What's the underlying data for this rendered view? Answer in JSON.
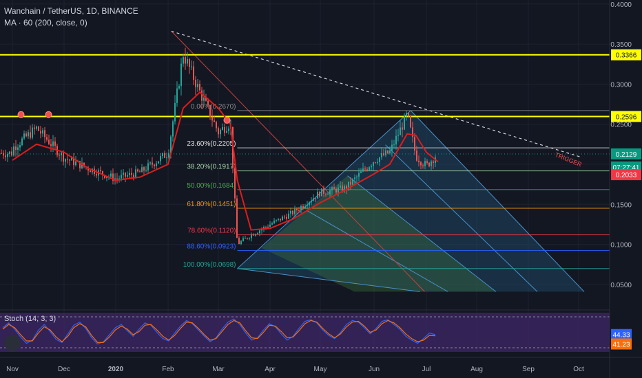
{
  "header": {
    "title": "Wanchain / TetherUS, 1D, BINANCE",
    "indicator": "MA · 60 (200, close, 0)"
  },
  "colors": {
    "background": "#131722",
    "axis_text": "#b2b5be",
    "grid": "#1e2230",
    "candle_up": "#26a69a",
    "candle_down": "#ef5350",
    "ma_line": "#e01c1c",
    "resistance": "#ffff00",
    "fib_zone_fill": "#1f4e6e",
    "stoch_bg": "#4a2a7a",
    "stoch_k": "#2962ff",
    "stoch_d": "#ff6d00",
    "price_tag_green": "#089981",
    "price_tag_red": "#f23645"
  },
  "price_axis": {
    "ticks": [
      "0.4000",
      "0.3500",
      "0.3000",
      "0.2500",
      "0.1500",
      "0.1000",
      "0.0500"
    ],
    "resistance_high": "0.3366",
    "resistance_mid": "0.2596",
    "last_price": "0.2129",
    "countdown": "07:27:41",
    "ma_value": "0.2033"
  },
  "time_axis": {
    "labels": [
      "Nov",
      "Dec",
      "2020",
      "Feb",
      "Mar",
      "Apr",
      "May",
      "Jun",
      "Jul",
      "Aug",
      "Sep",
      "Oct"
    ]
  },
  "fib_levels": [
    {
      "label": "0.00%(0.2670)",
      "value": 0.267,
      "color": "#8a8a8a"
    },
    {
      "label": "23.60%(0.2205)",
      "value": 0.2205,
      "color": "#e6e6e6"
    },
    {
      "label": "38.20%(0.1917)",
      "value": 0.1917,
      "color": "#a5d6a7"
    },
    {
      "label": "50.00%(0.1684)",
      "value": 0.1684,
      "color": "#4caf50"
    },
    {
      "label": "61.80%(0.1451)",
      "value": 0.1451,
      "color": "#ff9800"
    },
    {
      "label": "78.60%(0.1120)",
      "value": 0.112,
      "color": "#f23645"
    },
    {
      "label": "88.60%(0.0923)",
      "value": 0.0923,
      "color": "#2962ff"
    },
    {
      "label": "100.00%(0.0698)",
      "value": 0.0698,
      "color": "#26a69a"
    }
  ],
  "annotations": {
    "trigger": "TRIGGER"
  },
  "stoch": {
    "label": "Stoch (14, 3, 3)",
    "k_value": "44.33",
    "d_value": "41.23",
    "k_series": [
      62,
      74,
      58,
      38,
      22,
      30,
      55,
      70,
      52,
      32,
      24,
      46,
      68,
      76,
      60,
      36,
      20,
      26,
      44,
      62,
      70,
      54,
      40,
      58,
      74,
      68,
      50,
      34,
      28,
      48,
      66,
      80,
      72,
      56,
      40,
      26,
      36,
      58,
      76,
      84,
      70,
      48,
      30,
      36,
      56,
      72,
      64,
      46,
      30,
      40,
      60,
      78,
      82,
      74,
      56,
      42,
      34,
      50,
      70,
      80,
      76,
      62,
      46,
      60,
      78,
      82,
      70,
      58,
      40,
      30,
      22,
      34,
      48,
      44
    ],
    "d_series": [
      58,
      70,
      62,
      44,
      28,
      28,
      48,
      64,
      56,
      38,
      26,
      40,
      62,
      72,
      64,
      42,
      24,
      24,
      38,
      56,
      66,
      58,
      44,
      52,
      68,
      70,
      56,
      40,
      30,
      42,
      60,
      76,
      74,
      60,
      44,
      30,
      34,
      52,
      70,
      80,
      74,
      54,
      36,
      34,
      50,
      68,
      66,
      52,
      36,
      38,
      54,
      72,
      80,
      76,
      60,
      46,
      36,
      46,
      64,
      76,
      78,
      66,
      50,
      56,
      72,
      80,
      74,
      62,
      46,
      34,
      26,
      30,
      42,
      41
    ]
  },
  "chart_data": {
    "type": "line",
    "title": "Wanchain / TetherUS, 1D, BINANCE",
    "xlabel": "",
    "ylabel": "",
    "ylim": [
      0.025,
      0.405
    ],
    "x": [
      "Nov 1",
      "Nov 15",
      "Dec 1",
      "Dec 15",
      "Jan 1",
      "Jan 15",
      "Feb 1",
      "Feb 10",
      "Feb 20",
      "Mar 1",
      "Mar 8",
      "Mar 12",
      "Mar 20",
      "Apr 1",
      "Apr 15",
      "May 1",
      "May 15",
      "Jun 1",
      "Jun 10",
      "Jun 20",
      "Jun 25",
      "Jul 1",
      "Jul 8"
    ],
    "series": [
      {
        "name": "",
        "values": [
          0.22,
          0.245,
          0.208,
          0.195,
          0.182,
          0.19,
          0.214,
          0.338,
          0.29,
          0.24,
          0.252,
          0.1,
          0.112,
          0.125,
          0.14,
          0.165,
          0.17,
          0.205,
          0.215,
          0.262,
          0.21,
          0.198,
          0.214
        ]
      },
      {
        "name": "",
        "values": [
          0.205,
          0.225,
          0.215,
          0.195,
          0.18,
          0.184,
          0.2,
          0.27,
          0.29,
          0.27,
          0.25,
          0.18,
          0.118,
          0.12,
          0.132,
          0.152,
          0.168,
          0.188,
          0.2,
          0.238,
          0.236,
          0.215,
          0.203
        ]
      }
    ],
    "grid": true,
    "legend": "none"
  }
}
